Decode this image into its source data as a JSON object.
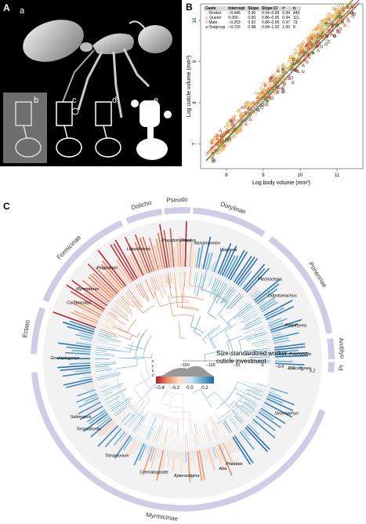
{
  "figure": {
    "panel_letters": [
      "A",
      "B",
      "C"
    ],
    "panel_a_sublabels": [
      "a",
      "b",
      "c",
      "d",
      "e"
    ]
  },
  "chart_data": [
    {
      "type": "scatter",
      "panel": "B",
      "xlabel": "Log body volume (mm³)",
      "ylabel": "Log cuticle volume (mm³)",
      "x_ticks": [
        "8",
        "9",
        "10",
        "11"
      ],
      "y_ticks": [
        "7",
        "8",
        "9",
        "10"
      ],
      "xlim": [
        7.3,
        11.7
      ],
      "ylim": [
        6.4,
        10.4
      ],
      "table": {
        "headers": [
          "Caste",
          "Intercept",
          "Slope",
          "Slope CI",
          "r²",
          "n"
        ],
        "rows": [
          [
            "Worker",
            "−0.446",
            "0.96",
            "0.94–0.99",
            "0.94",
            "440"
          ],
          [
            "Queen",
            "0.056",
            "0.90",
            "0.86–0.95",
            "0.94",
            "111"
          ],
          [
            "Male",
            "−0.253",
            "0.92",
            "0.86–0.95",
            "0.97",
            "73"
          ],
          [
            "Outgroup",
            "−0.715",
            "0.98",
            "0.94–1.02",
            "1.00",
            "8"
          ]
        ]
      },
      "series": [
        {
          "name": "Worker",
          "color": "#e8a13a",
          "marker": "circle",
          "line": {
            "intercept": -0.446,
            "slope": 0.96
          }
        },
        {
          "name": "Queen",
          "color": "#d03a2a",
          "marker": "triangle",
          "line": {
            "intercept": 0.056,
            "slope": 0.9
          }
        },
        {
          "name": "Male",
          "color": "#555555",
          "marker": "square",
          "line": {
            "intercept": -0.253,
            "slope": 0.92
          }
        },
        {
          "name": "Outgroup",
          "color": "#2e9e5b",
          "marker": "filled-square",
          "line": {
            "intercept": -0.715,
            "slope": 0.98
          }
        }
      ]
    },
    {
      "type": "circular-phylogeny",
      "panel": "C",
      "legend_title": "Size-standardized worker cuticle investment",
      "colorbar_ticks": [
        "−0.4",
        "−0.2",
        "0.0",
        "0.2"
      ],
      "colorbar_min": -0.45,
      "colorbar_max": 0.32,
      "density_axis_ticks": [
        "0",
        "1",
        "2",
        "3"
      ],
      "time_axis_ticks": [
        "−150",
        "−100",
        "−50",
        "0"
      ],
      "bar_scale_ticks": [
        "−0.4",
        "−0.2",
        "0",
        "0.2"
      ],
      "colors": [
        "#b2182b",
        "#ef8a62",
        "#fddbc7",
        "#d1e5f0",
        "#67a9cf",
        "#2166ac"
      ],
      "subfamilies": [
        {
          "name": "Dolicho",
          "start": -22,
          "end": -8
        },
        {
          "name": "Pseudo",
          "start": -7,
          "end": 3
        },
        {
          "name": "Dorylinae",
          "start": 4,
          "end": 33
        },
        {
          "name": "Ponerinae",
          "start": 36,
          "end": 80
        },
        {
          "name": "Amblyo",
          "start": 82,
          "end": 90
        },
        {
          "name": "Pr",
          "start": 91,
          "end": 95
        },
        {
          "name": "Myrmicinae",
          "start": 110,
          "end": 265
        },
        {
          "name": "Ectato",
          "start": 272,
          "end": 290
        },
        {
          "name": "Formicinae",
          "start": 293,
          "end": 336
        }
      ],
      "genera": [
        {
          "name": "Neivamyrmex",
          "angle": 12
        },
        {
          "name": "Liopnera",
          "angle": 23
        },
        {
          "name": "Dorylus",
          "angle": 3
        },
        {
          "name": "Pseudomyrmex",
          "angle": -3
        },
        {
          "name": "Linepithema",
          "angle": -22
        },
        {
          "name": "Plagiolepis",
          "angle": -40
        },
        {
          "name": "Myrmoteras",
          "angle": -54
        },
        {
          "name": "Camponotus",
          "angle": -62
        },
        {
          "name": "Gnamptogenys",
          "angle": -90
        },
        {
          "name": "Solenopsis",
          "angle": -120
        },
        {
          "name": "Temnothorax",
          "angle": -127
        },
        {
          "name": "Tetramorium",
          "angle": -146
        },
        {
          "name": "Crematogaster",
          "angle": -166
        },
        {
          "name": "Apterostigma",
          "angle": 178
        },
        {
          "name": "Atta",
          "angle": 160
        },
        {
          "name": "Pheidole",
          "angle": 154
        },
        {
          "name": "Strumigenys",
          "angle": 118
        },
        {
          "name": "Discothyrea",
          "angle": 95
        },
        {
          "name": "Prionopelta",
          "angle": 88
        },
        {
          "name": "Platythyrea",
          "angle": 74
        },
        {
          "name": "Odontomachus",
          "angle": 58
        },
        {
          "name": "Plectroctena",
          "angle": 48
        }
      ]
    }
  ]
}
